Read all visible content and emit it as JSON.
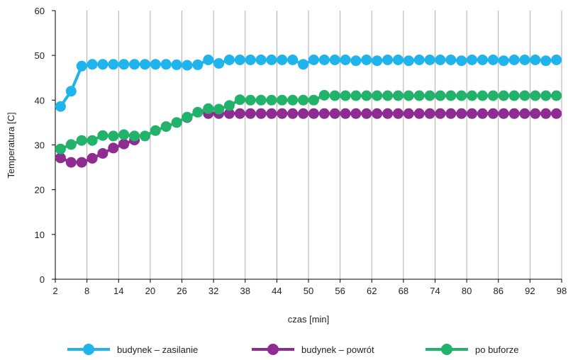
{
  "chart_data": {
    "type": "line",
    "xlabel": "czas [min]",
    "ylabel": "Temperatura [C]",
    "xlim": [
      2,
      98
    ],
    "ylim": [
      0,
      60
    ],
    "x_ticks": [
      2,
      8,
      14,
      20,
      26,
      32,
      38,
      44,
      50,
      56,
      62,
      68,
      74,
      80,
      86,
      92,
      98
    ],
    "y_ticks": [
      0,
      10,
      20,
      30,
      40,
      50,
      60
    ],
    "grid": "vertical",
    "legend_position": "bottom",
    "x": [
      3,
      5,
      7,
      9,
      11,
      13,
      15,
      17,
      19,
      21,
      23,
      25,
      27,
      29,
      31,
      33,
      35,
      37,
      39,
      41,
      43,
      45,
      47,
      49,
      51,
      53,
      55,
      57,
      59,
      61,
      63,
      65,
      67,
      69,
      71,
      73,
      75,
      77,
      79,
      81,
      83,
      85,
      87,
      89,
      91,
      93,
      95,
      97
    ],
    "series": [
      {
        "name": "budynek – zasilanie",
        "color": "#1fb4ec",
        "values": [
          38.6,
          42,
          47.6,
          48,
          48,
          48,
          48,
          48,
          48,
          48,
          48,
          47.9,
          47.8,
          47.9,
          49,
          48.2,
          49,
          49,
          49,
          49,
          49,
          49,
          49,
          48,
          49,
          49,
          49,
          49,
          48.8,
          49,
          48.8,
          49,
          49,
          48.8,
          49,
          49,
          49,
          49,
          48.8,
          49,
          49,
          49,
          48.8,
          49,
          49,
          49,
          48.8,
          49
        ]
      },
      {
        "name": "budynek – powrót",
        "color": "#8e2c92",
        "values": [
          27.1,
          26.1,
          26.1,
          27,
          28.1,
          29.3,
          30.2,
          31.1,
          null,
          null,
          null,
          null,
          36.1,
          null,
          37,
          37,
          37,
          37,
          37,
          37,
          37,
          37,
          37,
          37,
          37,
          37,
          37,
          37,
          37,
          37,
          37,
          37,
          37,
          37,
          37,
          37,
          37,
          37,
          37,
          37,
          37,
          37,
          37,
          37,
          37,
          37,
          37,
          37
        ]
      },
      {
        "name": "po buforze",
        "color": "#22b36a",
        "values": [
          29.1,
          30.1,
          31,
          31,
          32.1,
          32,
          32.3,
          32,
          32,
          33.2,
          34.1,
          35,
          36.2,
          37.3,
          38.1,
          38,
          38.8,
          40.1,
          40,
          40,
          40,
          40,
          40,
          40,
          40,
          41.1,
          41,
          41,
          41,
          41,
          41,
          41,
          41,
          41,
          41,
          41,
          41,
          41,
          41,
          41,
          41,
          41,
          41,
          41,
          41,
          41,
          41,
          41
        ]
      }
    ]
  }
}
